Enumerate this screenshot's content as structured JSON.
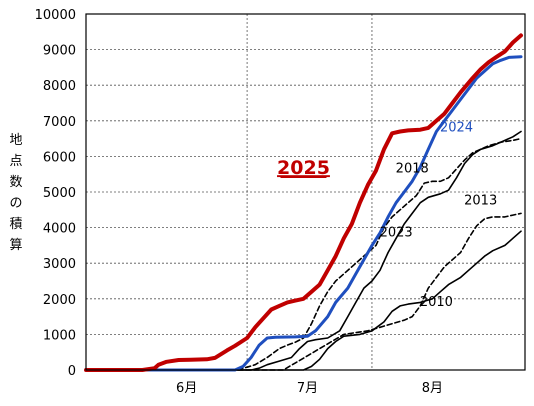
{
  "chart_data": {
    "type": "line",
    "title": "",
    "ylabel": "地点数の積算",
    "ylim": [
      0,
      10000
    ],
    "y_ticks": [
      "0",
      "1000",
      "2000",
      "3000",
      "4000",
      "5000",
      "6000",
      "7000",
      "8000",
      "9000",
      "10000"
    ],
    "x_domain": [
      "05-21",
      "09-07"
    ],
    "x_ticks": [
      {
        "label": "6月",
        "at": "06-15"
      },
      {
        "label": "7月",
        "at": "07-15"
      },
      {
        "label": "8月",
        "at": "08-15"
      }
    ],
    "x_grid_at": [
      "05-21",
      "06-30",
      "07-31"
    ],
    "grid": true,
    "series": [
      {
        "name": "2025",
        "color": "#c00000",
        "dash": "solid",
        "width": 4,
        "label_style": "bold-underline",
        "points": [
          [
            "05-21",
            0
          ],
          [
            "06-04",
            0
          ],
          [
            "06-07",
            50
          ],
          [
            "06-08",
            150
          ],
          [
            "06-10",
            230
          ],
          [
            "06-13",
            280
          ],
          [
            "06-16",
            290
          ],
          [
            "06-20",
            300
          ],
          [
            "06-22",
            340
          ],
          [
            "06-25",
            550
          ],
          [
            "06-27",
            680
          ],
          [
            "06-30",
            900
          ],
          [
            "07-02",
            1200
          ],
          [
            "07-04",
            1450
          ],
          [
            "07-06",
            1700
          ],
          [
            "07-08",
            1800
          ],
          [
            "07-10",
            1900
          ],
          [
            "07-12",
            1950
          ],
          [
            "07-14",
            2000
          ],
          [
            "07-16",
            2200
          ],
          [
            "07-18",
            2400
          ],
          [
            "07-20",
            2800
          ],
          [
            "07-22",
            3200
          ],
          [
            "07-24",
            3700
          ],
          [
            "07-26",
            4100
          ],
          [
            "07-28",
            4700
          ],
          [
            "07-30",
            5200
          ],
          [
            "08-01",
            5600
          ],
          [
            "08-03",
            6200
          ],
          [
            "08-05",
            6650
          ],
          [
            "08-07",
            6700
          ],
          [
            "08-09",
            6730
          ],
          [
            "08-12",
            6750
          ],
          [
            "08-14",
            6800
          ],
          [
            "08-16",
            7000
          ],
          [
            "08-18",
            7200
          ],
          [
            "08-20",
            7500
          ],
          [
            "08-22",
            7800
          ],
          [
            "08-25",
            8200
          ],
          [
            "08-27",
            8450
          ],
          [
            "08-29",
            8650
          ],
          [
            "08-31",
            8800
          ],
          [
            "09-02",
            8950
          ],
          [
            "09-04",
            9200
          ],
          [
            "09-06",
            9400
          ]
        ]
      },
      {
        "name": "2024",
        "color": "#1f4fbf",
        "dash": "solid",
        "width": 3,
        "label_style": "normal",
        "points": [
          [
            "05-21",
            0
          ],
          [
            "06-27",
            0
          ],
          [
            "06-29",
            100
          ],
          [
            "07-01",
            350
          ],
          [
            "07-03",
            700
          ],
          [
            "07-05",
            900
          ],
          [
            "07-07",
            920
          ],
          [
            "07-12",
            930
          ],
          [
            "07-15",
            950
          ],
          [
            "07-17",
            1100
          ],
          [
            "07-20",
            1500
          ],
          [
            "07-22",
            1900
          ],
          [
            "07-25",
            2300
          ],
          [
            "07-27",
            2700
          ],
          [
            "07-29",
            3100
          ],
          [
            "07-31",
            3500
          ],
          [
            "08-02",
            3850
          ],
          [
            "08-04",
            4300
          ],
          [
            "08-06",
            4700
          ],
          [
            "08-08",
            5000
          ],
          [
            "08-10",
            5300
          ],
          [
            "08-12",
            5700
          ],
          [
            "08-14",
            6200
          ],
          [
            "08-16",
            6700
          ],
          [
            "08-18",
            7000
          ],
          [
            "08-20",
            7300
          ],
          [
            "08-22",
            7600
          ],
          [
            "08-24",
            7900
          ],
          [
            "08-26",
            8200
          ],
          [
            "08-28",
            8400
          ],
          [
            "08-30",
            8600
          ],
          [
            "09-01",
            8700
          ],
          [
            "09-03",
            8780
          ],
          [
            "09-06",
            8800
          ]
        ]
      },
      {
        "name": "2018",
        "color": "#000000",
        "dash": "dashed",
        "width": 1.6,
        "label_style": "normal",
        "points": [
          [
            "05-21",
            0
          ],
          [
            "06-27",
            0
          ],
          [
            "06-30",
            80
          ],
          [
            "07-02",
            150
          ],
          [
            "07-05",
            350
          ],
          [
            "07-08",
            600
          ],
          [
            "07-10",
            700
          ],
          [
            "07-12",
            780
          ],
          [
            "07-14",
            900
          ],
          [
            "07-16",
            1300
          ],
          [
            "07-18",
            1800
          ],
          [
            "07-20",
            2200
          ],
          [
            "07-22",
            2500
          ],
          [
            "07-24",
            2700
          ],
          [
            "07-26",
            2900
          ],
          [
            "07-28",
            3100
          ],
          [
            "07-30",
            3300
          ],
          [
            "08-01",
            3500
          ],
          [
            "08-03",
            4000
          ],
          [
            "08-05",
            4300
          ],
          [
            "08-07",
            4500
          ],
          [
            "08-09",
            4700
          ],
          [
            "08-11",
            4900
          ],
          [
            "08-13",
            5250
          ],
          [
            "08-15",
            5300
          ],
          [
            "08-17",
            5300
          ],
          [
            "08-19",
            5400
          ],
          [
            "08-21",
            5650
          ],
          [
            "08-23",
            5900
          ],
          [
            "08-25",
            6100
          ],
          [
            "08-27",
            6200
          ],
          [
            "08-29",
            6300
          ],
          [
            "09-01",
            6400
          ],
          [
            "09-04",
            6450
          ],
          [
            "09-06",
            6500
          ]
        ]
      },
      {
        "name": "2023",
        "color": "#000000",
        "dash": "solid",
        "width": 1.6,
        "label_style": "normal",
        "points": [
          [
            "05-21",
            0
          ],
          [
            "07-01",
            0
          ],
          [
            "07-03",
            50
          ],
          [
            "07-05",
            150
          ],
          [
            "07-08",
            250
          ],
          [
            "07-11",
            350
          ],
          [
            "07-13",
            600
          ],
          [
            "07-15",
            800
          ],
          [
            "07-17",
            850
          ],
          [
            "07-20",
            900
          ],
          [
            "07-23",
            1100
          ],
          [
            "07-25",
            1500
          ],
          [
            "07-27",
            1900
          ],
          [
            "07-29",
            2300
          ],
          [
            "07-31",
            2500
          ],
          [
            "08-02",
            2800
          ],
          [
            "08-04",
            3300
          ],
          [
            "08-06",
            3700
          ],
          [
            "08-08",
            4100
          ],
          [
            "08-10",
            4400
          ],
          [
            "08-12",
            4700
          ],
          [
            "08-14",
            4850
          ],
          [
            "08-17",
            4950
          ],
          [
            "08-19",
            5050
          ],
          [
            "08-21",
            5400
          ],
          [
            "08-23",
            5800
          ],
          [
            "08-25",
            6050
          ],
          [
            "08-27",
            6200
          ],
          [
            "08-30",
            6300
          ],
          [
            "09-02",
            6450
          ],
          [
            "09-04",
            6550
          ],
          [
            "09-06",
            6700
          ]
        ]
      },
      {
        "name": "2013",
        "color": "#000000",
        "dash": "dashed",
        "width": 1.6,
        "label_style": "normal",
        "points": [
          [
            "05-21",
            0
          ],
          [
            "07-09",
            0
          ],
          [
            "07-12",
            200
          ],
          [
            "07-15",
            400
          ],
          [
            "07-18",
            600
          ],
          [
            "07-21",
            800
          ],
          [
            "07-24",
            1000
          ],
          [
            "07-27",
            1050
          ],
          [
            "07-30",
            1100
          ],
          [
            "08-02",
            1200
          ],
          [
            "08-05",
            1300
          ],
          [
            "08-08",
            1400
          ],
          [
            "08-10",
            1500
          ],
          [
            "08-12",
            1800
          ],
          [
            "08-14",
            2300
          ],
          [
            "08-16",
            2600
          ],
          [
            "08-18",
            2900
          ],
          [
            "08-20",
            3100
          ],
          [
            "08-22",
            3300
          ],
          [
            "08-24",
            3700
          ],
          [
            "08-26",
            4050
          ],
          [
            "08-28",
            4250
          ],
          [
            "08-30",
            4300
          ],
          [
            "09-02",
            4300
          ],
          [
            "09-04",
            4350
          ],
          [
            "09-06",
            4400
          ]
        ]
      },
      {
        "name": "2010",
        "color": "#000000",
        "dash": "solid",
        "width": 1.6,
        "label_style": "normal",
        "points": [
          [
            "05-21",
            0
          ],
          [
            "07-14",
            0
          ],
          [
            "07-16",
            100
          ],
          [
            "07-18",
            300
          ],
          [
            "07-20",
            600
          ],
          [
            "07-22",
            800
          ],
          [
            "07-24",
            950
          ],
          [
            "07-28",
            1000
          ],
          [
            "07-31",
            1100
          ],
          [
            "08-03",
            1350
          ],
          [
            "08-05",
            1650
          ],
          [
            "08-07",
            1800
          ],
          [
            "08-09",
            1850
          ],
          [
            "08-12",
            1900
          ],
          [
            "08-15",
            2000
          ],
          [
            "08-17",
            2200
          ],
          [
            "08-19",
            2400
          ],
          [
            "08-22",
            2600
          ],
          [
            "08-24",
            2800
          ],
          [
            "08-26",
            3000
          ],
          [
            "08-28",
            3200
          ],
          [
            "08-30",
            3350
          ],
          [
            "09-02",
            3500
          ],
          [
            "09-04",
            3700
          ],
          [
            "09-06",
            3900
          ]
        ]
      }
    ],
    "annotations": [
      {
        "text": "2025",
        "series": "2025",
        "at": [
          "07-14",
          5500
        ]
      },
      {
        "text": "2024",
        "series": "2024",
        "at": [
          "08-21",
          6700
        ]
      },
      {
        "text": "2018",
        "series": "2018",
        "at": [
          "08-10",
          5550
        ]
      },
      {
        "text": "2013",
        "series": "2013",
        "at": [
          "08-27",
          4650
        ]
      },
      {
        "text": "2023",
        "series": "2023",
        "at": [
          "08-06",
          3750
        ]
      },
      {
        "text": "2010",
        "series": "2010",
        "at": [
          "08-16",
          1800
        ]
      }
    ]
  }
}
